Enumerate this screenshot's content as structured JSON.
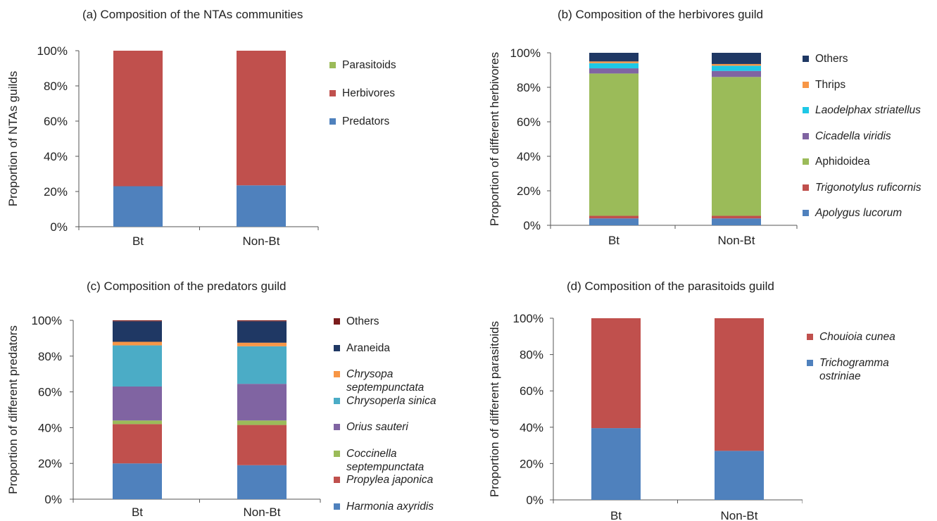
{
  "chart_data": [
    {
      "type": "bar",
      "stacked": true,
      "title": "(a) Composition of the NTAs communities",
      "ylabel": "Proportion of NTAs guilds",
      "categories": [
        "Bt",
        "Non-Bt"
      ],
      "yticks": [
        "0%",
        "20%",
        "40%",
        "60%",
        "80%",
        "100%"
      ],
      "ylim": [
        0,
        100
      ],
      "legend_position": "right",
      "series": [
        {
          "name": "Predators",
          "italic": false,
          "color": "#4f81bd",
          "values": [
            23,
            23.5
          ]
        },
        {
          "name": "Herbivores",
          "italic": false,
          "color": "#c0504d",
          "values": [
            77,
            76.5
          ]
        },
        {
          "name": "Parasitoids",
          "italic": false,
          "color": "#9bbb59",
          "values": [
            0,
            0
          ]
        }
      ]
    },
    {
      "type": "bar",
      "stacked": true,
      "title": "(b) Composition of the herbivores guild",
      "ylabel": "Proportion of different herbivores",
      "categories": [
        "Bt",
        "Non-Bt"
      ],
      "yticks": [
        "0%",
        "20%",
        "40%",
        "60%",
        "80%",
        "100%"
      ],
      "ylim": [
        0,
        100
      ],
      "legend_position": "right",
      "series": [
        {
          "name": "Apolygus lucorum",
          "italic": true,
          "color": "#4f81bd",
          "values": [
            4,
            4
          ]
        },
        {
          "name": "Trigonotylus ruficornis",
          "italic": true,
          "color": "#c0504d",
          "values": [
            1.5,
            1.5
          ]
        },
        {
          "name": "Aphidoidea",
          "italic": false,
          "color": "#9bbb59",
          "values": [
            82.5,
            80.5
          ]
        },
        {
          "name": "Cicadella viridis",
          "italic": true,
          "color": "#8064a2",
          "values": [
            3,
            3.5
          ]
        },
        {
          "name": "Laodelphax striatellus",
          "italic": true,
          "color": "#1ec8e6",
          "values": [
            3,
            3
          ]
        },
        {
          "name": "Thrips",
          "italic": false,
          "color": "#f79646",
          "values": [
            1,
            1
          ]
        },
        {
          "name": "Others",
          "italic": false,
          "color": "#1f3864",
          "values": [
            5,
            6.5
          ]
        }
      ]
    },
    {
      "type": "bar",
      "stacked": true,
      "title": "(c) Composition of the predators guild",
      "ylabel": "Proportion of different predators",
      "categories": [
        "Bt",
        "Non-Bt"
      ],
      "yticks": [
        "0%",
        "20%",
        "40%",
        "60%",
        "80%",
        "100%"
      ],
      "ylim": [
        0,
        100
      ],
      "legend_position": "right",
      "series": [
        {
          "name": "Harmonia axyridis",
          "italic": true,
          "color": "#4f81bd",
          "values": [
            20,
            19
          ]
        },
        {
          "name": "Propylea japonica",
          "italic": true,
          "color": "#c0504d",
          "values": [
            22,
            22.5
          ]
        },
        {
          "name": "Coccinella septempunctata",
          "italic": true,
          "color": "#9bbb59",
          "values": [
            2,
            2.5
          ]
        },
        {
          "name": "Orius sauteri",
          "italic": true,
          "color": "#8064a2",
          "values": [
            19,
            20.5
          ]
        },
        {
          "name": "Chrysoperla sinica",
          "italic": true,
          "color": "#4bacc6",
          "values": [
            23,
            21
          ]
        },
        {
          "name": "Chrysopa septempunctata",
          "italic": true,
          "color": "#f79646",
          "values": [
            2,
            2
          ]
        },
        {
          "name": "Araneida",
          "italic": false,
          "color": "#1f3864",
          "values": [
            11.5,
            12
          ]
        },
        {
          "name": "Others",
          "italic": false,
          "color": "#7b1c1c",
          "values": [
            0.5,
            0.5
          ]
        }
      ]
    },
    {
      "type": "bar",
      "stacked": true,
      "title": "(d) Composition of the parasitoids guild",
      "ylabel": "Proportion of different parasitoids",
      "categories": [
        "Bt",
        "Non-Bt"
      ],
      "yticks": [
        "0%",
        "20%",
        "40%",
        "60%",
        "80%",
        "100%"
      ],
      "ylim": [
        0,
        100
      ],
      "legend_position": "right",
      "series": [
        {
          "name": "Trichogramma ostriniae",
          "italic": true,
          "color": "#4f81bd",
          "values": [
            39.5,
            27
          ]
        },
        {
          "name": "Chouioia cunea",
          "italic": true,
          "color": "#c0504d",
          "values": [
            60.5,
            73
          ]
        }
      ]
    }
  ]
}
